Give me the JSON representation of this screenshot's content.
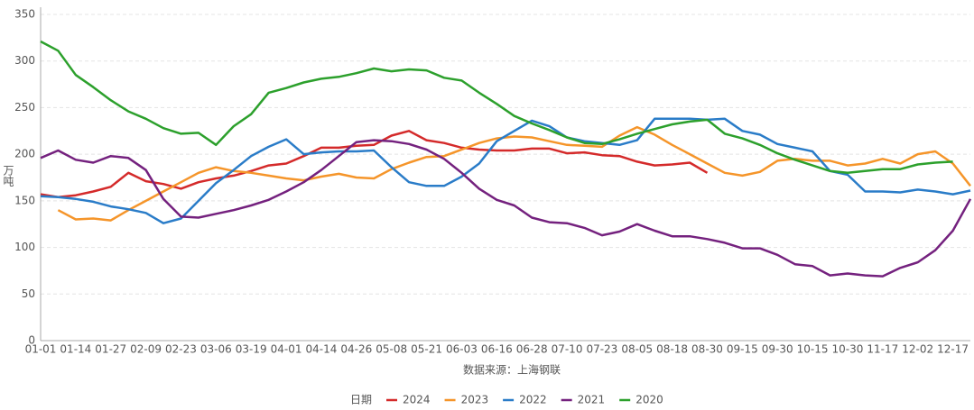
{
  "chart_data": {
    "type": "line",
    "y_label": "万吨",
    "subtitle": "数据来源：上海钢联",
    "legend_title": "日期",
    "legend": "bottom",
    "grid": true,
    "categories": [
      "01-01",
      null,
      "01-14",
      null,
      "01-27",
      null,
      "02-09",
      null,
      "02-23",
      null,
      "03-06",
      null,
      "03-19",
      null,
      "04-01",
      null,
      "04-14",
      null,
      "04-26",
      null,
      "05-08",
      null,
      "05-21",
      null,
      "06-03",
      null,
      "06-16",
      null,
      "06-28",
      null,
      "07-10",
      null,
      "07-23",
      null,
      "08-05",
      null,
      "08-18",
      null,
      "08-30",
      null,
      "09-15",
      null,
      "09-30",
      null,
      "10-15",
      null,
      "10-30",
      null,
      "11-17",
      null,
      "12-02",
      null,
      "12-17",
      null
    ],
    "ylim": [
      0,
      350
    ],
    "yticks": [
      0,
      50,
      100,
      150,
      200,
      250,
      300,
      350
    ],
    "series": [
      {
        "name": "2024",
        "color": "#d42a2a",
        "values": [
          157,
          154,
          156,
          160,
          165,
          180,
          171,
          168,
          163,
          170,
          174,
          177,
          182,
          188,
          190,
          198,
          207,
          207,
          209,
          210,
          220,
          225,
          215,
          212,
          207,
          205,
          204,
          204,
          206,
          206,
          201,
          202,
          199,
          198,
          192,
          188,
          189,
          191,
          180,
          null,
          null,
          null,
          null,
          null,
          null,
          null,
          null,
          null,
          null,
          null,
          null,
          null,
          null,
          null
        ]
      },
      {
        "name": "2023",
        "color": "#f5952a",
        "values": [
          null,
          140,
          130,
          131,
          129,
          140,
          150,
          160,
          170,
          180,
          186,
          182,
          180,
          177,
          174,
          172,
          176,
          179,
          175,
          174,
          184,
          191,
          197,
          198,
          205,
          212,
          217,
          219,
          218,
          214,
          210,
          209,
          208,
          220,
          229,
          221,
          210,
          200,
          190,
          180,
          177,
          181,
          193,
          195,
          193,
          193,
          188,
          190,
          195,
          190,
          200,
          203,
          190,
          166
        ]
      },
      {
        "name": "2022",
        "color": "#2a7cc8",
        "values": [
          155,
          154,
          152,
          149,
          144,
          141,
          137,
          126,
          131,
          150,
          169,
          183,
          198,
          208,
          216,
          200,
          202,
          203,
          203,
          204,
          186,
          170,
          166,
          166,
          176,
          190,
          214,
          225,
          236,
          230,
          218,
          214,
          212,
          210,
          215,
          238,
          238,
          238,
          237,
          238,
          225,
          221,
          211,
          207,
          203,
          182,
          178,
          160,
          160,
          159,
          162,
          160,
          157,
          161
        ]
      },
      {
        "name": "2021",
        "color": "#74217e",
        "values": [
          196,
          204,
          194,
          191,
          198,
          196,
          183,
          152,
          133,
          132,
          136,
          140,
          145,
          151,
          160,
          170,
          183,
          198,
          213,
          215,
          214,
          211,
          205,
          195,
          180,
          163,
          151,
          145,
          132,
          127,
          126,
          121,
          113,
          117,
          125,
          118,
          112,
          112,
          109,
          105,
          99,
          99,
          92,
          82,
          80,
          70,
          72,
          70,
          69,
          78,
          84,
          97,
          118,
          152
        ]
      },
      {
        "name": "2020",
        "color": "#2ca02c",
        "values": [
          321,
          311,
          285,
          272,
          258,
          246,
          238,
          228,
          222,
          223,
          210,
          230,
          243,
          266,
          271,
          277,
          281,
          283,
          287,
          292,
          289,
          291,
          290,
          282,
          279,
          266,
          254,
          241,
          233,
          226,
          218,
          212,
          211,
          216,
          222,
          227,
          232,
          235,
          237,
          222,
          217,
          210,
          201,
          194,
          188,
          182,
          180,
          182,
          184,
          184,
          189,
          191,
          192,
          null
        ]
      }
    ]
  }
}
